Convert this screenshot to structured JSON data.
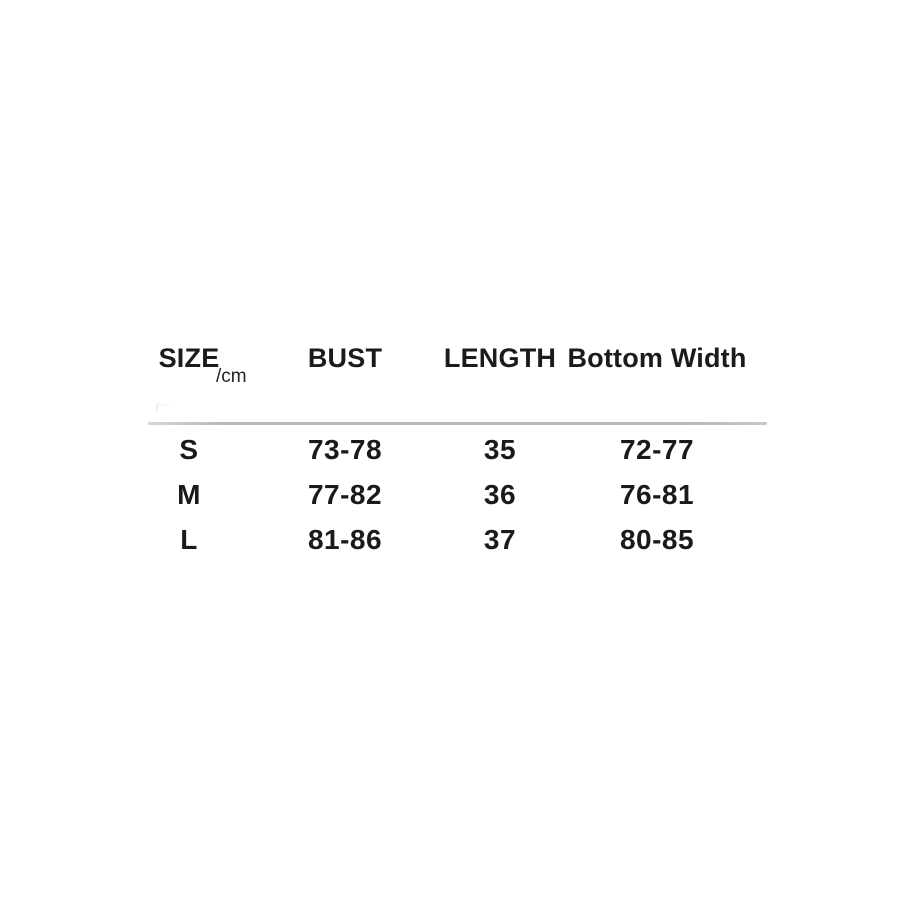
{
  "page": {
    "background_color": "#ffffff",
    "text_color": "#1a1a1a",
    "divider_color": "#bcbcbc"
  },
  "table": {
    "unit_label": "/cm",
    "columns": [
      "SIZE",
      "BUST",
      "LENGTH",
      "Bottom Width"
    ],
    "rows": [
      {
        "size": "S",
        "bust": "73-78",
        "length": "35",
        "bottom_width": "72-77"
      },
      {
        "size": "M",
        "bust": "77-82",
        "length": "36",
        "bottom_width": "76-81"
      },
      {
        "size": "L",
        "bust": "81-86",
        "length": "37",
        "bottom_width": "80-85"
      }
    ]
  },
  "chart_data": {
    "type": "table",
    "title": "",
    "unit": "cm",
    "columns": [
      "SIZE",
      "BUST",
      "LENGTH",
      "Bottom Width"
    ],
    "rows": [
      [
        "S",
        "73-78",
        "35",
        "72-77"
      ],
      [
        "M",
        "77-82",
        "36",
        "76-81"
      ],
      [
        "L",
        "81-86",
        "37",
        "80-85"
      ]
    ],
    "notes": "Apparel size chart; BUST and Bottom Width given as ranges in cm, LENGTH as single value in cm"
  }
}
